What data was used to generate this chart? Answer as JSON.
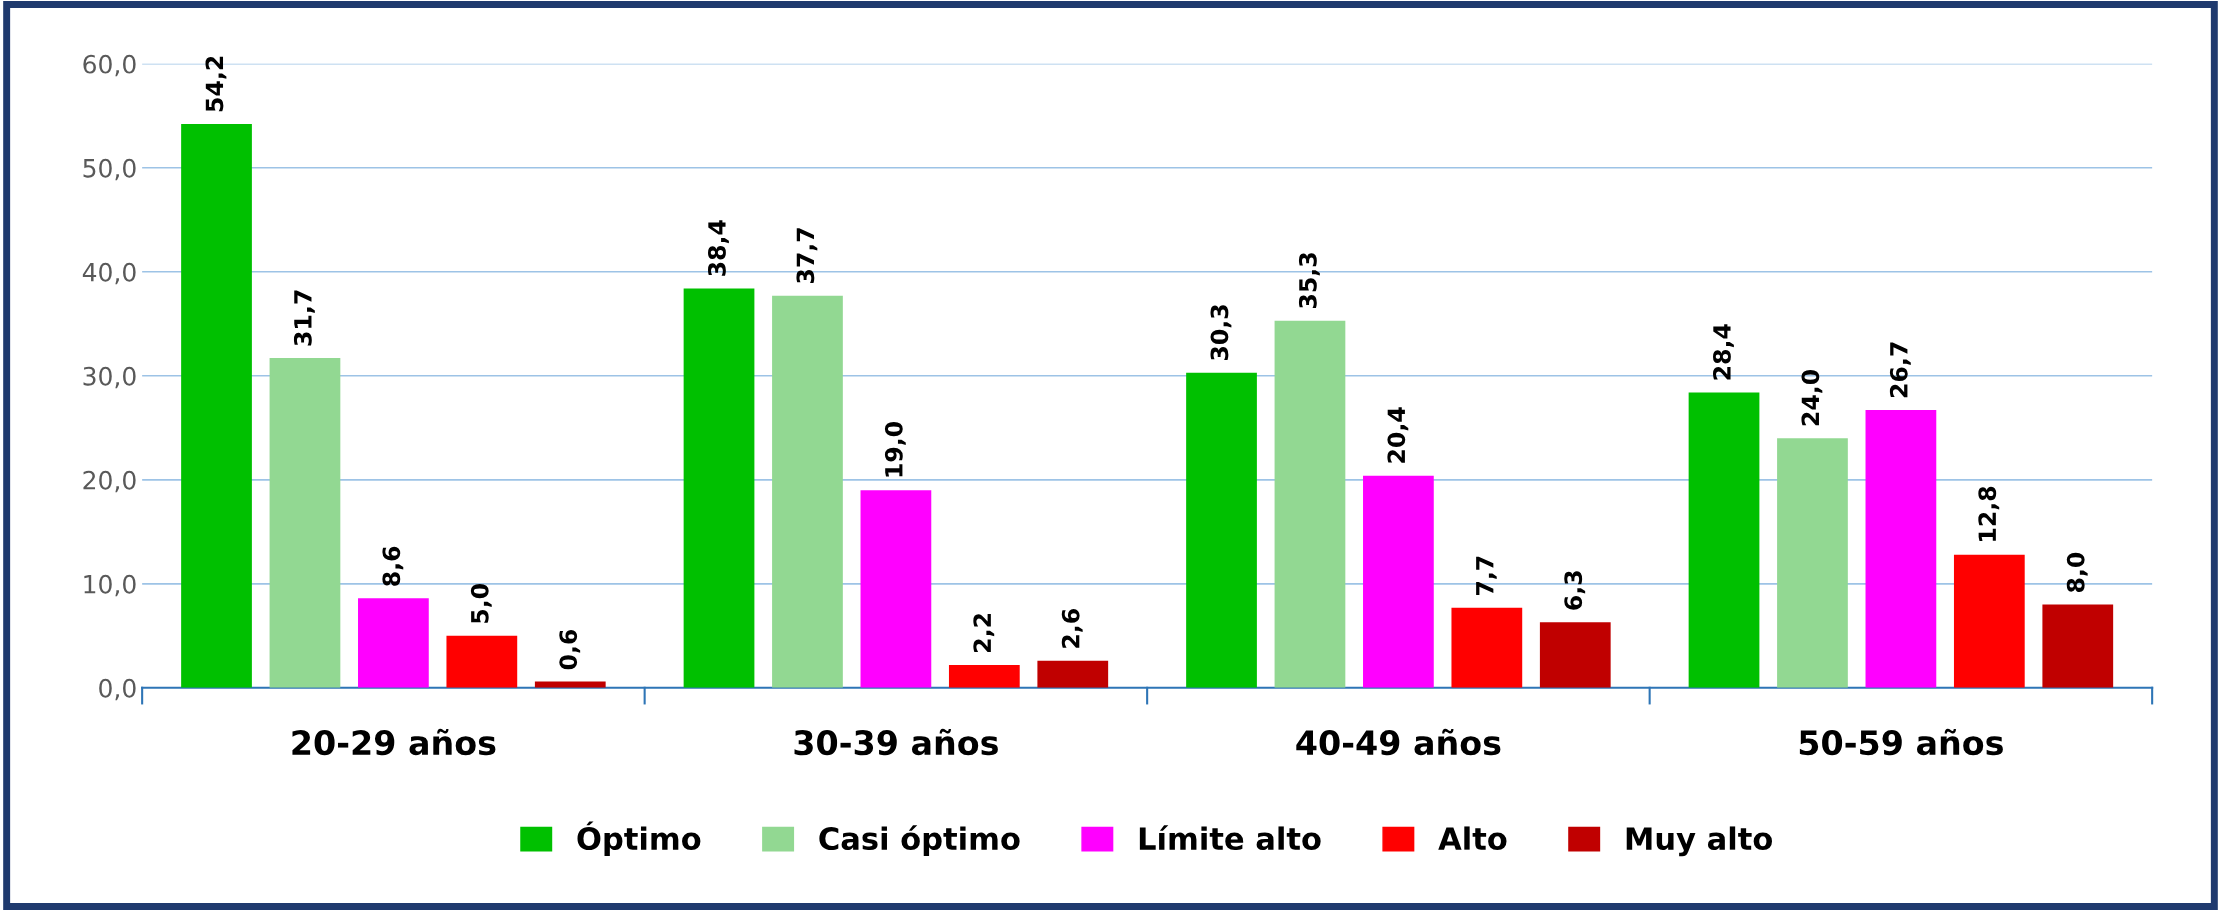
{
  "chart_data": {
    "type": "bar",
    "categories": [
      "20-29 años",
      "30-39 años",
      "40-49 años",
      "50-59 años"
    ],
    "series": [
      {
        "name": "Óptimo",
        "color": "#00c000",
        "values": [
          54.2,
          38.4,
          30.3,
          28.4
        ],
        "value_labels": [
          "54,2",
          "38,4",
          "30,3",
          "28,4"
        ]
      },
      {
        "name": "Casi óptimo",
        "color": "#92d892",
        "values": [
          31.7,
          37.7,
          35.3,
          24.0
        ],
        "value_labels": [
          "31,7",
          "37,7",
          "35,3",
          "24,0"
        ]
      },
      {
        "name": "Límite alto",
        "color": "#ff00ff",
        "values": [
          8.6,
          19.0,
          20.4,
          26.7
        ],
        "value_labels": [
          "8,6",
          "19,0",
          "20,4",
          "26,7"
        ]
      },
      {
        "name": "Alto",
        "color": "#ff0000",
        "values": [
          5.0,
          2.2,
          7.7,
          12.8
        ],
        "value_labels": [
          "5,0",
          "2,2",
          "7,7",
          "12,8"
        ]
      },
      {
        "name": "Muy alto",
        "color": "#c00000",
        "values": [
          0.6,
          2.6,
          6.3,
          8.0
        ],
        "value_labels": [
          "0,6",
          "2,6",
          "6,3",
          "8,0"
        ]
      }
    ],
    "ylim": [
      0,
      60
    ],
    "yticks": [
      {
        "value": 0,
        "label": "0,0"
      },
      {
        "value": 10,
        "label": "10,0"
      },
      {
        "value": 20,
        "label": "20,0"
      },
      {
        "value": 30,
        "label": "30,0"
      },
      {
        "value": 40,
        "label": "40,0"
      },
      {
        "value": 50,
        "label": "50,0"
      },
      {
        "value": 60,
        "label": "60,0"
      }
    ],
    "grid": "y",
    "legend": "bottom"
  }
}
